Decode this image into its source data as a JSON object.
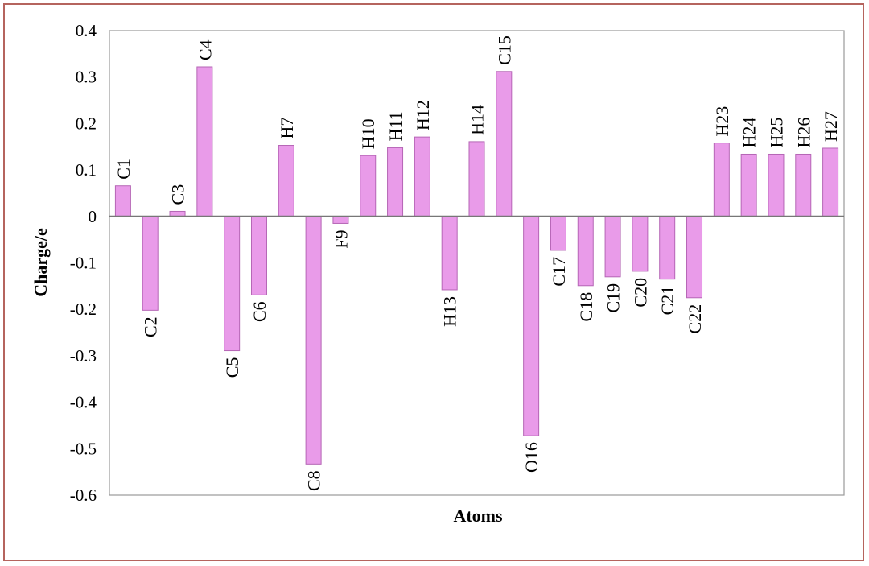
{
  "chart_data": {
    "type": "bar",
    "title": "",
    "xlabel": "Atoms",
    "ylabel": "Charge/e",
    "ylim": [
      -0.6,
      0.4
    ],
    "yticks": [
      "0.4",
      "0.3",
      "0.2",
      "0.1",
      "0",
      "-0.1",
      "-0.2",
      "-0.3",
      "-0.4",
      "-0.5",
      "-0.6"
    ],
    "grid": false,
    "legend": "none",
    "bar_color": "#e99be9",
    "bar_edge_color": "#b566b5",
    "frame_color": "#b5645e",
    "categories": [
      "C1",
      "C2",
      "C3",
      "C4",
      "C5",
      "C6",
      "H7",
      "C8",
      "F9",
      "H10",
      "H11",
      "H12",
      "H13",
      "H14",
      "C15",
      "O16",
      "C17",
      "C18",
      "C19",
      "C20",
      "C21",
      "C22",
      "H23",
      "H24",
      "H25",
      "H26",
      "H27"
    ],
    "values": [
      0.066,
      -0.202,
      0.011,
      0.322,
      -0.289,
      -0.169,
      0.153,
      -0.533,
      -0.015,
      0.131,
      0.148,
      0.171,
      -0.158,
      0.161,
      0.312,
      -0.472,
      -0.073,
      -0.149,
      -0.13,
      -0.118,
      -0.135,
      -0.175,
      0.158,
      0.134,
      0.134,
      0.134,
      0.147
    ]
  }
}
